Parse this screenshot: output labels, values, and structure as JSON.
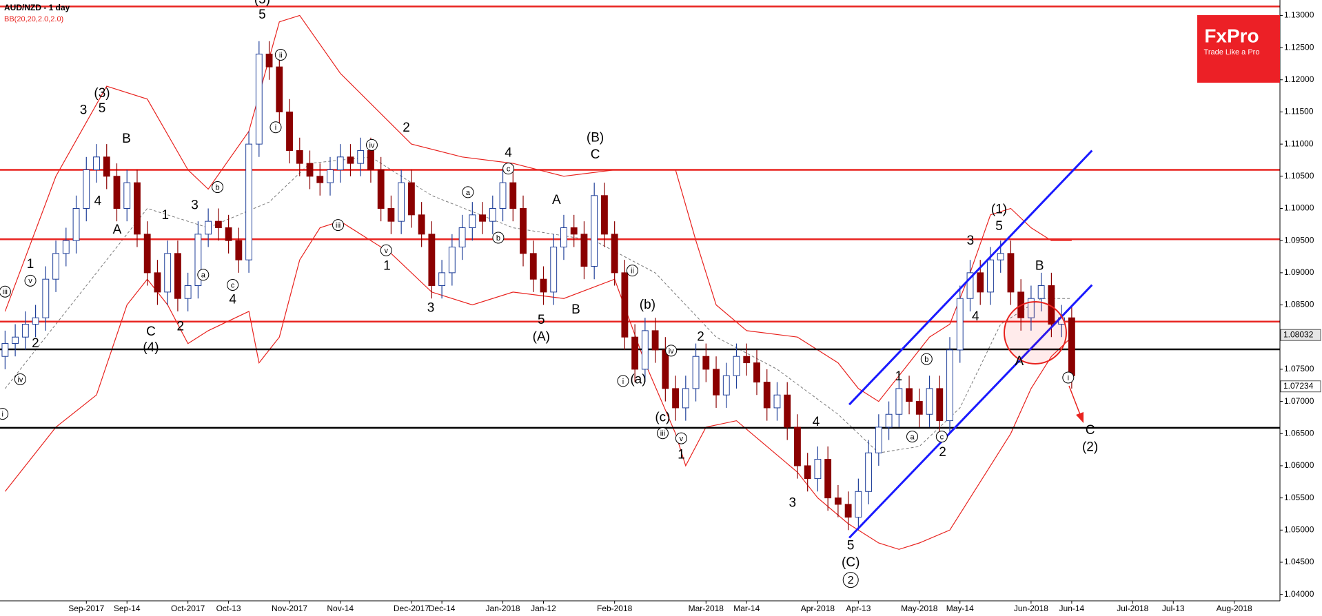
{
  "chart_data": {
    "type": "candlestick",
    "title": "AUD/NZD - 1 day",
    "subtitle": "BB(20,20,2.0,2.0)",
    "logo": {
      "name": "FxPro",
      "tagline": "Trade Like a Pro"
    },
    "categories": [
      null,
      null,
      null,
      null,
      null,
      null,
      null,
      null,
      "Sep-2017",
      null,
      null,
      null,
      "Sep-14",
      null,
      null,
      null,
      null,
      null,
      "Oct-2017",
      null,
      null,
      null,
      "Oct-13",
      null,
      null,
      null,
      null,
      null,
      "Nov-2017",
      null,
      null,
      null,
      null,
      "Nov-14",
      null,
      null,
      null,
      null,
      null,
      null,
      "Dec-2017",
      null,
      null,
      "Dec-14",
      null,
      null,
      null,
      null,
      null,
      "Jan-2018",
      null,
      null,
      null,
      "Jan-12",
      null,
      null,
      null,
      null,
      null,
      null,
      "Feb-2018",
      null,
      null,
      null,
      null,
      null,
      null,
      null,
      null,
      "Mar-2018",
      null,
      null,
      null,
      "Mar-14",
      null,
      null,
      null,
      null,
      null,
      null,
      "Apr-2018",
      null,
      null,
      null,
      "Apr-13",
      null,
      null,
      null,
      null,
      null,
      "May-2018",
      null,
      null,
      null,
      "May-14",
      null,
      null,
      null,
      null,
      null,
      null,
      "Jun-2018",
      null,
      null,
      null,
      "Jun-14",
      null,
      null,
      null,
      null,
      null,
      "Jul-2018",
      null,
      null,
      null,
      "Jul-13",
      null,
      null,
      null,
      null,
      null,
      "Aug-2018",
      null,
      null,
      null,
      null
    ],
    "open": [
      1.077,
      1.079,
      1.08,
      1.082,
      1.083,
      1.089,
      1.093,
      1.095,
      1.1,
      1.106,
      1.108,
      1.105,
      1.1,
      1.104,
      1.096,
      1.09,
      1.087,
      1.093,
      1.086,
      1.088,
      1.096,
      1.098,
      1.097,
      1.095,
      1.092,
      1.11,
      1.124,
      1.122,
      1.115,
      1.109,
      1.107,
      1.105,
      1.104,
      1.106,
      1.108,
      1.107,
      1.109,
      1.106,
      1.1,
      1.098,
      1.104,
      1.099,
      1.096,
      1.088,
      1.09,
      1.094,
      1.097,
      1.099,
      1.098,
      1.1,
      1.104,
      1.1,
      1.093,
      1.089,
      1.087,
      1.094,
      1.097,
      1.096,
      1.091,
      1.102,
      1.096,
      1.09,
      1.08,
      1.075,
      1.081,
      1.078,
      1.072,
      1.069,
      1.072,
      1.077,
      1.075,
      1.071,
      1.074,
      1.077,
      1.076,
      1.073,
      1.069,
      1.071,
      1.066,
      1.06,
      1.058,
      1.061,
      1.055,
      1.054,
      1.052,
      1.056,
      1.062,
      1.066,
      1.068,
      1.072,
      1.07,
      1.068,
      1.072,
      1.067,
      1.078,
      1.086,
      1.09,
      1.087,
      1.092,
      1.093,
      1.087,
      1.083,
      1.086,
      1.088,
      1.082,
      1.083,
      null,
      null,
      null,
      null,
      null,
      null,
      null,
      null,
      null,
      null,
      null,
      null,
      null,
      null,
      null,
      null,
      null,
      null,
      null,
      null
    ],
    "high": [
      1.081,
      1.082,
      1.084,
      1.085,
      1.091,
      1.095,
      1.097,
      1.102,
      1.108,
      1.11,
      1.11,
      1.107,
      1.106,
      1.106,
      1.098,
      1.092,
      1.095,
      1.095,
      1.09,
      1.098,
      1.1,
      1.1,
      1.099,
      1.097,
      1.112,
      1.126,
      1.126,
      1.124,
      1.117,
      1.111,
      1.109,
      1.107,
      1.108,
      1.11,
      1.11,
      1.111,
      1.111,
      1.108,
      1.102,
      1.106,
      1.106,
      1.101,
      1.098,
      1.092,
      1.096,
      1.099,
      1.101,
      1.101,
      1.102,
      1.106,
      1.106,
      1.102,
      1.095,
      1.091,
      1.096,
      1.099,
      1.099,
      1.098,
      1.104,
      1.104,
      1.098,
      1.092,
      1.082,
      1.083,
      1.083,
      1.08,
      1.074,
      1.074,
      1.079,
      1.079,
      1.077,
      1.076,
      1.079,
      1.079,
      1.078,
      1.075,
      1.073,
      1.073,
      1.068,
      1.062,
      1.063,
      1.063,
      1.057,
      1.056,
      1.058,
      1.064,
      1.068,
      1.07,
      1.074,
      1.074,
      1.072,
      1.074,
      1.074,
      1.08,
      1.088,
      1.092,
      1.092,
      1.094,
      1.095,
      1.095,
      1.089,
      1.088,
      1.09,
      1.09,
      1.085,
      1.085,
      null,
      null,
      null,
      null,
      null,
      null,
      null,
      null,
      null,
      null,
      null,
      null,
      null,
      null,
      null,
      null,
      null,
      null,
      null,
      null
    ],
    "low": [
      1.075,
      1.077,
      1.078,
      1.08,
      1.081,
      1.087,
      1.091,
      1.093,
      1.098,
      1.104,
      1.103,
      1.098,
      1.098,
      1.094,
      1.088,
      1.085,
      1.085,
      1.084,
      1.084,
      1.086,
      1.094,
      1.095,
      1.093,
      1.09,
      1.09,
      1.108,
      1.12,
      1.113,
      1.107,
      1.105,
      1.103,
      1.102,
      1.102,
      1.104,
      1.105,
      1.105,
      1.104,
      1.098,
      1.096,
      1.096,
      1.097,
      1.094,
      1.086,
      1.086,
      1.088,
      1.092,
      1.095,
      1.096,
      1.096,
      1.098,
      1.098,
      1.091,
      1.087,
      1.085,
      1.085,
      1.092,
      1.094,
      1.089,
      1.089,
      1.094,
      1.088,
      1.078,
      1.073,
      1.073,
      1.076,
      1.07,
      1.067,
      1.067,
      1.07,
      1.073,
      1.069,
      1.069,
      1.072,
      1.074,
      1.071,
      1.067,
      1.067,
      1.064,
      1.058,
      1.056,
      1.056,
      1.053,
      1.052,
      1.05,
      1.05,
      1.054,
      1.06,
      1.064,
      1.066,
      1.068,
      1.066,
      1.066,
      1.065,
      1.065,
      1.076,
      1.084,
      1.085,
      1.085,
      1.09,
      1.085,
      1.081,
      1.081,
      1.084,
      1.08,
      1.08,
      1.072,
      null,
      null,
      null,
      null,
      null,
      null,
      null,
      null,
      null,
      null,
      null,
      null,
      null,
      null,
      null,
      null,
      null,
      null,
      null,
      null
    ],
    "close": [
      1.079,
      1.08,
      1.082,
      1.083,
      1.089,
      1.093,
      1.095,
      1.1,
      1.106,
      1.108,
      1.105,
      1.1,
      1.104,
      1.096,
      1.09,
      1.087,
      1.093,
      1.086,
      1.088,
      1.096,
      1.098,
      1.097,
      1.095,
      1.092,
      1.11,
      1.124,
      1.122,
      1.115,
      1.109,
      1.107,
      1.105,
      1.104,
      1.106,
      1.108,
      1.107,
      1.109,
      1.106,
      1.1,
      1.098,
      1.104,
      1.099,
      1.096,
      1.088,
      1.09,
      1.094,
      1.097,
      1.099,
      1.098,
      1.1,
      1.104,
      1.1,
      1.093,
      1.089,
      1.087,
      1.094,
      1.097,
      1.096,
      1.091,
      1.102,
      1.096,
      1.09,
      1.08,
      1.075,
      1.081,
      1.078,
      1.072,
      1.069,
      1.072,
      1.077,
      1.075,
      1.071,
      1.074,
      1.077,
      1.076,
      1.073,
      1.069,
      1.071,
      1.066,
      1.06,
      1.058,
      1.061,
      1.055,
      1.054,
      1.052,
      1.056,
      1.062,
      1.066,
      1.068,
      1.072,
      1.07,
      1.068,
      1.072,
      1.067,
      1.078,
      1.086,
      1.09,
      1.087,
      1.092,
      1.093,
      1.087,
      1.083,
      1.086,
      1.088,
      1.082,
      1.083,
      1.074,
      null,
      null,
      null,
      null,
      null,
      null,
      null,
      null,
      null,
      null,
      null,
      null,
      null,
      null,
      null,
      null,
      null,
      null,
      null,
      null
    ],
    "ylim": [
      1.039,
      1.1324
    ],
    "yticks": [
      {
        "value": 1.04,
        "label": "1.04000"
      },
      {
        "value": 1.045,
        "label": "1.04500"
      },
      {
        "value": 1.05,
        "label": "1.05000"
      },
      {
        "value": 1.055,
        "label": "1.05500"
      },
      {
        "value": 1.06,
        "label": "1.06000"
      },
      {
        "value": 1.065,
        "label": "1.06500"
      },
      {
        "value": 1.07,
        "label": "1.07000"
      },
      {
        "value": 1.075,
        "label": "1.07500"
      },
      {
        "value": 1.08,
        "label": "1.08000"
      },
      {
        "value": 1.085,
        "label": "1.08500"
      },
      {
        "value": 1.09,
        "label": "1.09000"
      },
      {
        "value": 1.095,
        "label": "1.09500"
      },
      {
        "value": 1.1,
        "label": "1.10000"
      },
      {
        "value": 1.105,
        "label": "1.10500"
      },
      {
        "value": 1.11,
        "label": "1.11000"
      },
      {
        "value": 1.115,
        "label": "1.11500"
      },
      {
        "value": 1.12,
        "label": "1.12000"
      },
      {
        "value": 1.125,
        "label": "1.12500"
      },
      {
        "value": 1.13,
        "label": "1.13000"
      }
    ],
    "price_markers": [
      1.08032,
      1.07234
    ],
    "bands": {
      "upper": {
        "x": [
          0,
          5,
          10,
          14,
          18,
          20,
          24,
          27,
          29,
          33,
          40,
          45,
          50,
          55,
          60,
          66,
          68,
          70,
          73,
          78,
          82,
          84,
          86,
          89,
          91,
          93,
          95,
          97,
          99,
          101,
          103,
          105
        ],
        "values": [
          1.084,
          1.105,
          1.119,
          1.117,
          1.106,
          1.103,
          1.112,
          1.129,
          1.13,
          1.121,
          1.11,
          1.108,
          1.107,
          1.105,
          1.106,
          1.106,
          1.095,
          1.085,
          1.081,
          1.08,
          1.076,
          1.072,
          1.07,
          1.076,
          1.08,
          1.082,
          1.09,
          1.099,
          1.1,
          1.097,
          1.095,
          1.095
        ]
      },
      "lower": {
        "x": [
          0,
          5,
          9,
          12,
          14,
          16,
          18,
          20,
          24,
          25,
          27,
          29,
          31,
          33,
          38,
          42,
          46,
          50,
          55,
          60,
          63,
          66,
          67,
          69,
          72,
          75,
          78,
          80,
          83,
          86,
          88,
          90,
          93,
          95,
          97,
          99,
          101,
          103,
          105
        ],
        "values": [
          1.056,
          1.066,
          1.071,
          1.085,
          1.089,
          1.085,
          1.079,
          1.081,
          1.084,
          1.076,
          1.08,
          1.092,
          1.097,
          1.098,
          1.093,
          1.087,
          1.085,
          1.087,
          1.086,
          1.089,
          1.076,
          1.065,
          1.06,
          1.066,
          1.067,
          1.063,
          1.059,
          1.055,
          1.051,
          1.048,
          1.047,
          1.048,
          1.05,
          1.055,
          1.06,
          1.065,
          1.072,
          1.077,
          1.08
        ]
      },
      "middle": {
        "x": [
          0,
          8,
          14,
          20,
          26,
          30,
          36,
          42,
          50,
          58,
          64,
          70,
          76,
          82,
          86,
          90,
          94,
          98,
          102,
          105
        ],
        "values": [
          1.072,
          1.088,
          1.1,
          1.097,
          1.101,
          1.107,
          1.108,
          1.102,
          1.097,
          1.095,
          1.09,
          1.08,
          1.075,
          1.068,
          1.062,
          1.063,
          1.069,
          1.082,
          1.086,
          1.086
        ]
      }
    },
    "levels": {
      "red": [
        1.1314,
        1.106,
        1.0952,
        1.0824
      ],
      "black": [
        1.0781,
        1.0659
      ]
    },
    "trendlines": [
      {
        "x": [
          83.1,
          107.0
        ],
        "values": [
          1.0695,
          1.109
        ]
      },
      {
        "x": [
          83.1,
          107.0
        ],
        "values": [
          1.0488,
          1.0881
        ]
      }
    ],
    "colors": {
      "up": "#1f3f99",
      "down": "#8b0000",
      "band": "#e8231f",
      "middle": "#7a7a7a",
      "level_red": "#e8231f",
      "level_black": "#000000",
      "trend": "#1a1aff",
      "logo": "#ec2026"
    },
    "wave_labels": [
      "1",
      "2",
      "3",
      "(3)",
      "5",
      "4",
      "B",
      "A",
      "1",
      "3",
      "C",
      "(4)",
      "2",
      "4",
      "(5)",
      "5",
      "2",
      "1",
      "3",
      "4",
      "A",
      "5",
      "(A)",
      "B",
      "(B)",
      "C",
      "(b)",
      "(a)",
      "(c)",
      "2",
      "1",
      "4",
      "3",
      "5",
      "(C)",
      "1",
      "2",
      "3",
      "4",
      "5",
      "(1)",
      "B",
      "A",
      "C",
      "(2)"
    ],
    "circled_labels": [
      "iii",
      "v",
      "iv",
      "i",
      "ii",
      "i",
      "c",
      "a",
      "b",
      "iv",
      "iii",
      "v",
      "a",
      "c",
      "b",
      "ii",
      "i",
      "iv",
      "iii",
      "v",
      "b",
      "a",
      "c",
      "i",
      "2"
    ]
  }
}
